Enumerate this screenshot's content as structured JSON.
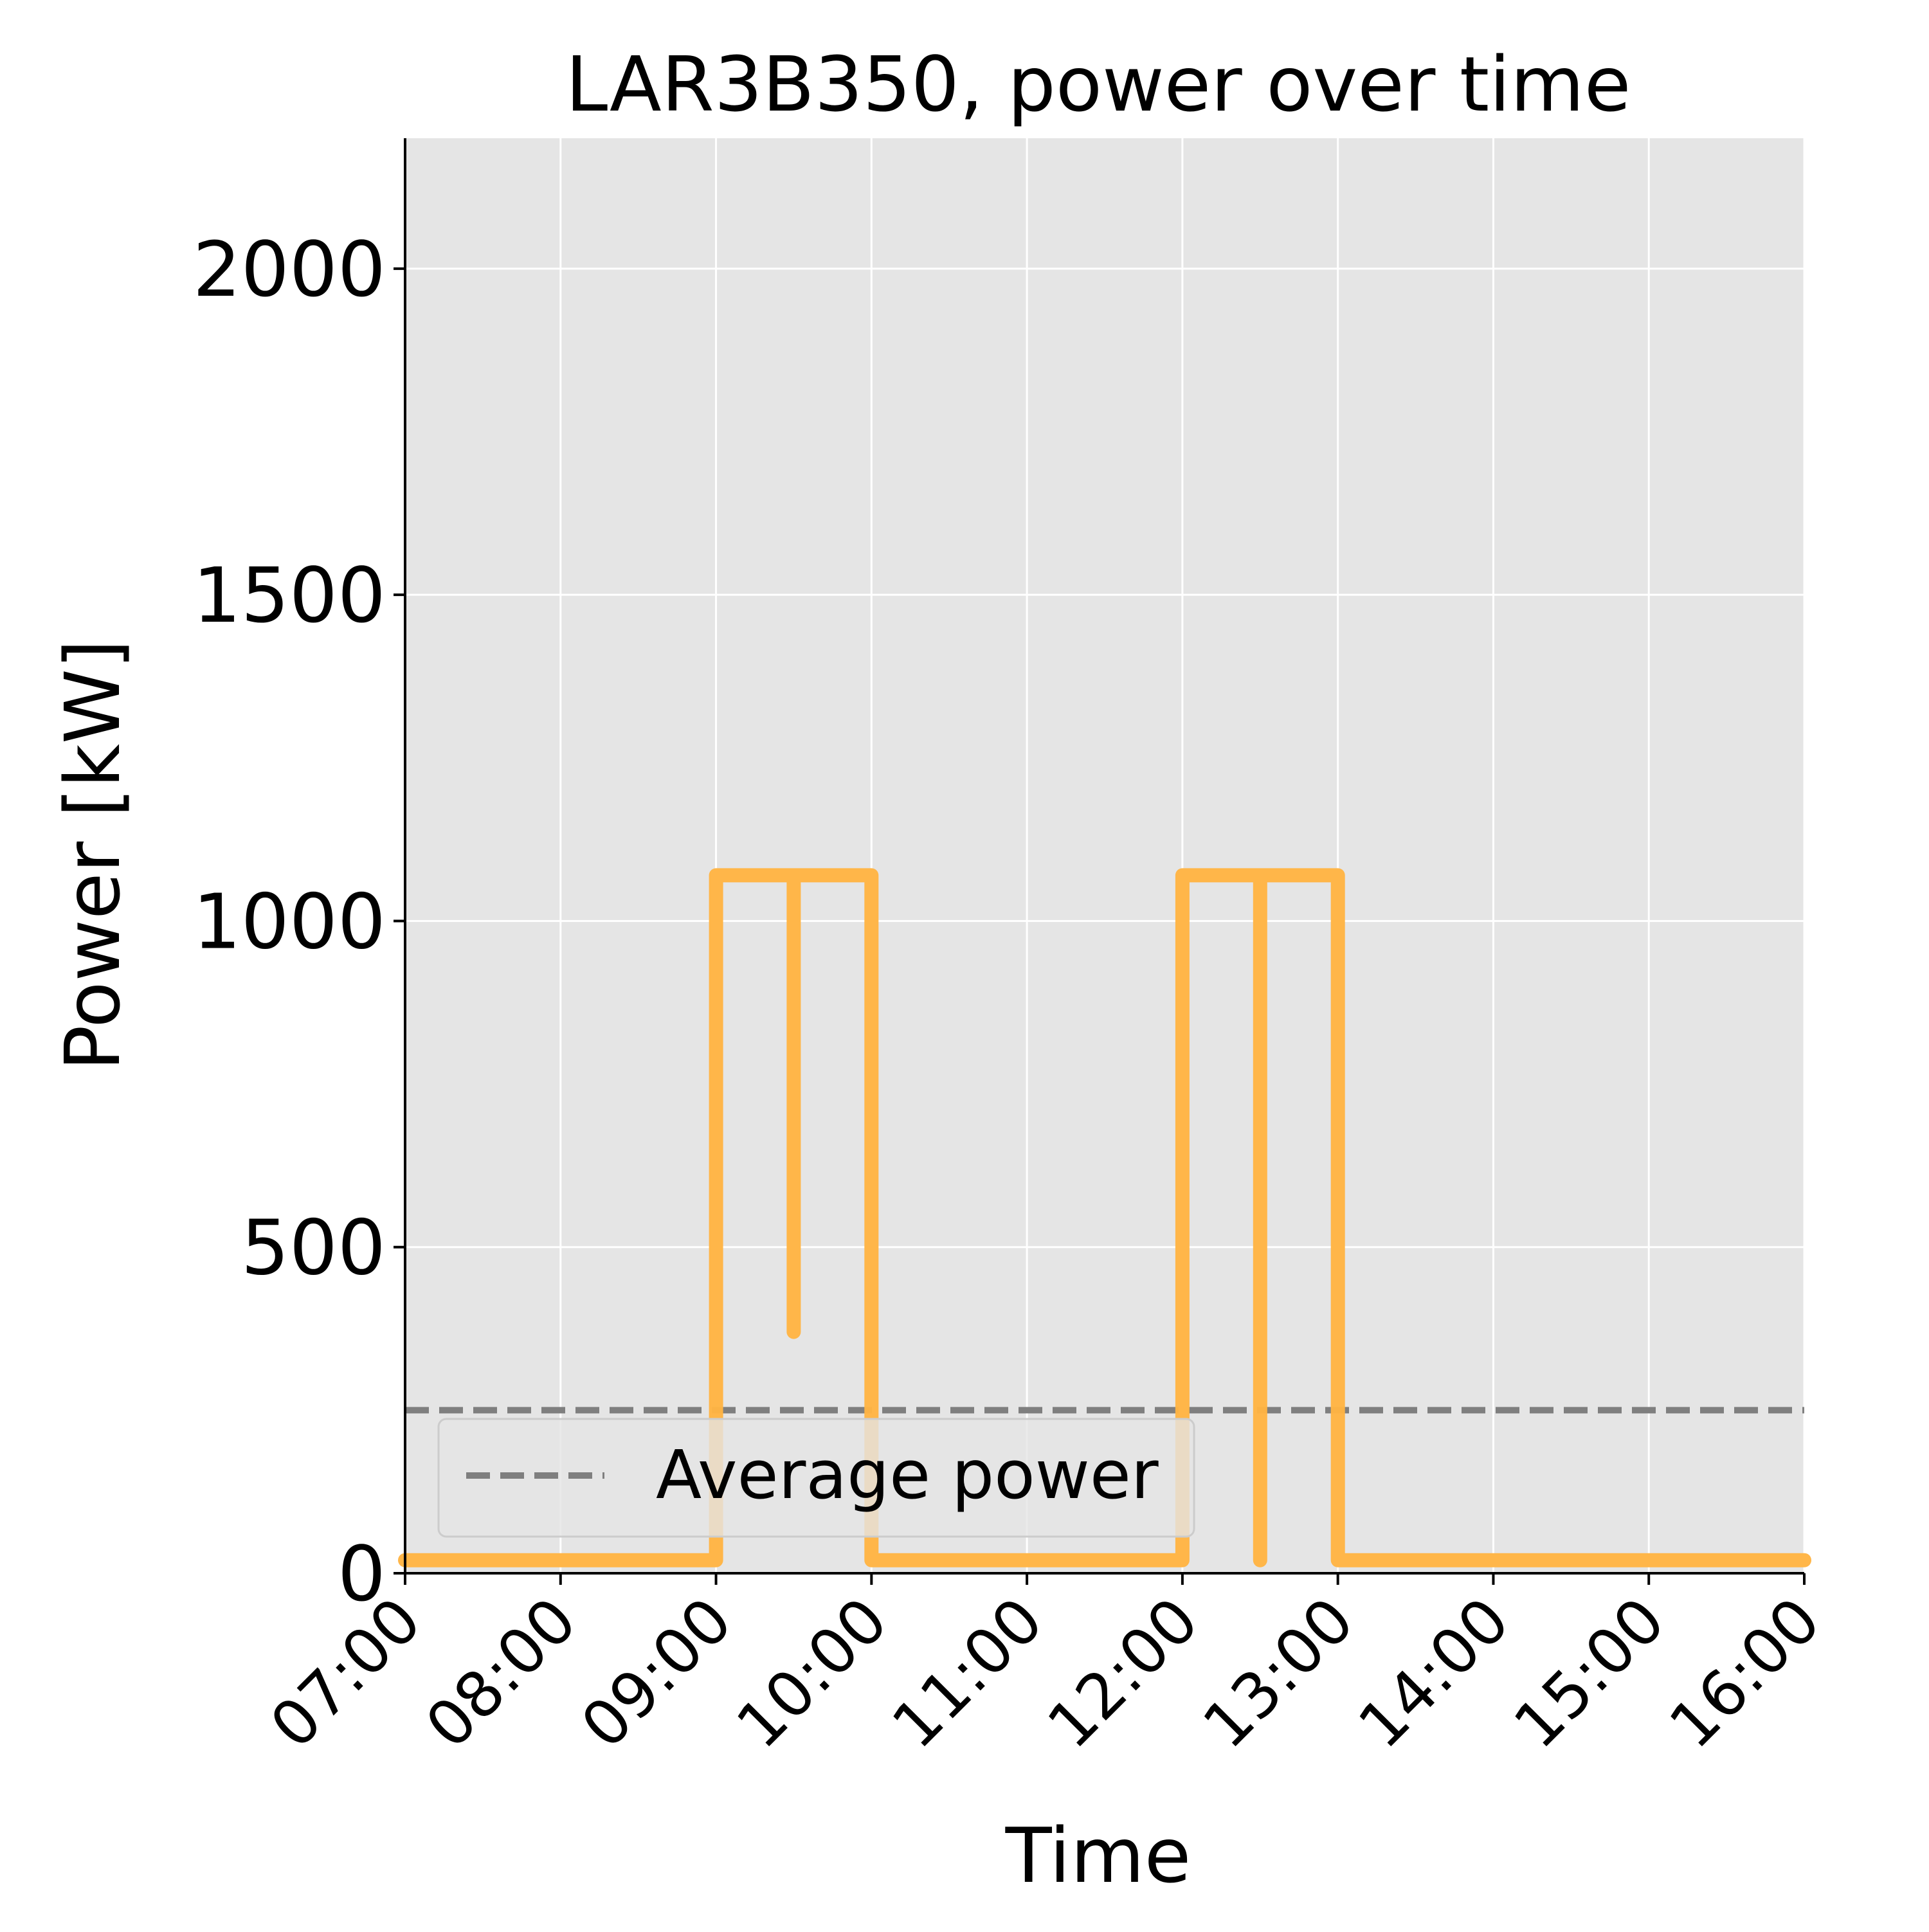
{
  "chart_data": {
    "type": "line",
    "title": "LAR3B350, power over time",
    "xlabel": "Time",
    "ylabel": "Power [kW]",
    "x_ticks": [
      "07:00",
      "08:00",
      "09:00",
      "10:00",
      "11:00",
      "12:00",
      "13:00",
      "14:00",
      "15:00",
      "16:00"
    ],
    "y_ticks": [
      "0",
      "500",
      "1000",
      "1500",
      "2000"
    ],
    "xlim": [
      "07:00",
      "16:00"
    ],
    "ylim": [
      0,
      2200
    ],
    "grid": true,
    "legend_position": "lower-left",
    "series": [
      {
        "color": "#FFB443",
        "step": true,
        "x": [
          "07:00",
          "09:00",
          "09:00",
          "09:30",
          "09:30",
          "09:30",
          "10:00",
          "10:00",
          "12:00",
          "12:00",
          "12:30",
          "12:30",
          "12:30",
          "13:00",
          "13:00",
          "16:00"
        ],
        "y": [
          20,
          20,
          1070,
          1070,
          370,
          1070,
          1070,
          20,
          20,
          1070,
          1070,
          20,
          1070,
          1070,
          20,
          20
        ]
      }
    ],
    "reference_lines": [
      {
        "name": "Average power",
        "y": 250,
        "style": "dashed",
        "color": "#7F7F7F"
      }
    ],
    "legend": [
      {
        "label": "Average power",
        "style": "dashed",
        "color": "#7F7F7F"
      }
    ]
  }
}
